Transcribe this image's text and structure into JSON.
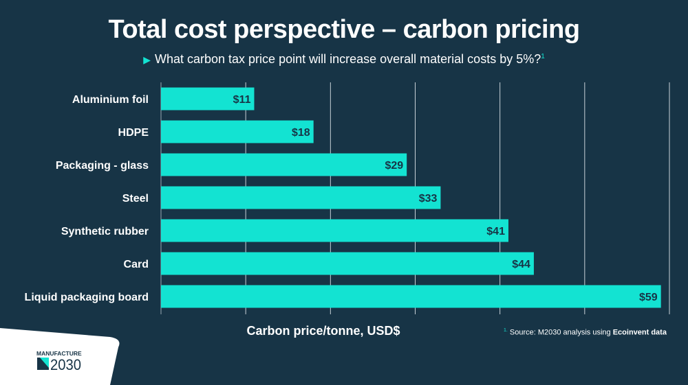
{
  "title": "Total cost perspective – carbon pricing",
  "subtitle": "What carbon tax price point will increase overall material costs by 5%?",
  "subtitle_footnote": "1",
  "source": {
    "marker": "1.",
    "text": "Source: M2030 analysis using ",
    "bold": "Ecoinvent data"
  },
  "logo": {
    "line1": "MANUFACTURE",
    "line2": "2030"
  },
  "colors": {
    "background": "#173446",
    "bar": "#13e3d2",
    "label_text": "#173446"
  },
  "chart_data": {
    "type": "bar",
    "orientation": "horizontal",
    "categories": [
      "Aluminium foil",
      "HDPE",
      "Packaging - glass",
      "Steel",
      "Synthetic rubber",
      "Card",
      "Liquid packaging board"
    ],
    "values": [
      11,
      18,
      29,
      33,
      41,
      44,
      59
    ],
    "data_labels": [
      "$11",
      "$18",
      "$29",
      "$33",
      "$41",
      "$44",
      "$59"
    ],
    "xlabel": "Carbon price/tonne, USD$",
    "xlim": [
      0,
      60
    ],
    "grid": true,
    "grid_step": 10
  }
}
